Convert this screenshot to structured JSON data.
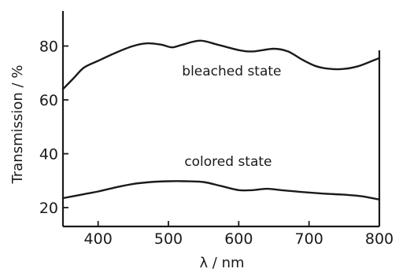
{
  "chart_data": {
    "type": "line",
    "xlabel": "λ / nm",
    "ylabel": "Transmission / %",
    "xlim": [
      350,
      800
    ],
    "ylim": [
      13,
      93
    ],
    "xticks": [
      400,
      500,
      600,
      700,
      800
    ],
    "yticks": [
      20,
      40,
      60,
      80
    ],
    "grid": false,
    "annotations": [
      {
        "text": "bleached state",
        "x": 590,
        "y": 69
      },
      {
        "text": "colored state",
        "x": 585,
        "y": 35.5
      }
    ],
    "series": [
      {
        "x": [
          350,
          365,
          380,
          400,
          425,
          450,
          470,
          490,
          505,
          520,
          545,
          570,
          600,
          620,
          650,
          670,
          690,
          710,
          730,
          750,
          770,
          790,
          800
        ],
        "y": [
          64,
          68,
          72,
          74.5,
          77.5,
          80,
          81,
          80.5,
          79.5,
          80.5,
          82,
          80.5,
          78.5,
          78,
          79,
          78,
          75,
          72.5,
          71.5,
          71.5,
          72.5,
          74.5,
          75.5
        ]
      },
      {
        "x": [
          350,
          380,
          400,
          425,
          450,
          475,
          500,
          525,
          550,
          575,
          600,
          620,
          640,
          660,
          690,
          720,
          750,
          775,
          800
        ],
        "y": [
          23.5,
          25,
          26,
          27.5,
          28.8,
          29.5,
          29.8,
          29.8,
          29.5,
          28,
          26.5,
          26.5,
          27,
          26.5,
          25.8,
          25.2,
          24.8,
          24.2,
          23
        ]
      }
    ]
  }
}
